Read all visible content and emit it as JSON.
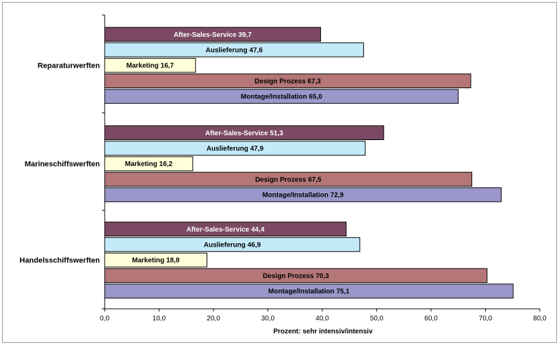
{
  "chart_data": {
    "type": "bar",
    "orientation": "horizontal",
    "categories": [
      "Reparaturwerften",
      "Marineschiffswerften",
      "Handelsschiffswerften"
    ],
    "series": [
      {
        "name": "After-Sales-Service",
        "values": [
          39.7,
          51.3,
          44.4
        ],
        "labels": [
          "After-Sales-Service 39,7",
          "After-Sales-Service 51,3",
          "After-Sales-Service 44,4"
        ],
        "color": "#7b4963",
        "label_color": "#ffffff"
      },
      {
        "name": "Auslieferung",
        "values": [
          47.6,
          47.9,
          46.9
        ],
        "labels": [
          "Auslieferung 47,6",
          "Auslieferung 47,9",
          "Auslieferung 46,9"
        ],
        "color": "#c4eafa",
        "label_color": "#000000"
      },
      {
        "name": "Marketing",
        "values": [
          16.7,
          16.2,
          18.8
        ],
        "labels": [
          "Marketing 16,7",
          "Marketing 16,2",
          "Marketing 18,8"
        ],
        "color": "#fffed8",
        "label_color": "#000000"
      },
      {
        "name": "Design Prozess",
        "values": [
          67.3,
          67.5,
          70.3
        ],
        "labels": [
          "Design Prozess 67,3",
          "Design Prozess 67,5",
          "Design Prozess 70,3"
        ],
        "color": "#b47677",
        "label_color": "#000000"
      },
      {
        "name": "Montage/Installation",
        "values": [
          65.0,
          72.9,
          75.1
        ],
        "labels": [
          "Montage/Installation 65,0",
          "Montage/Installation 72,9",
          "Montage/Installation 75,1"
        ],
        "color": "#9b97cb",
        "label_color": "#000000"
      }
    ],
    "xlabel": "Prozent: sehr intensiv/intensiv",
    "xlim": [
      0,
      80
    ],
    "xticks": [
      "0,0",
      "10,0",
      "20,0",
      "30,0",
      "40,0",
      "50,0",
      "60,0",
      "70,0",
      "80,0"
    ],
    "grid": false,
    "legend": "none"
  }
}
